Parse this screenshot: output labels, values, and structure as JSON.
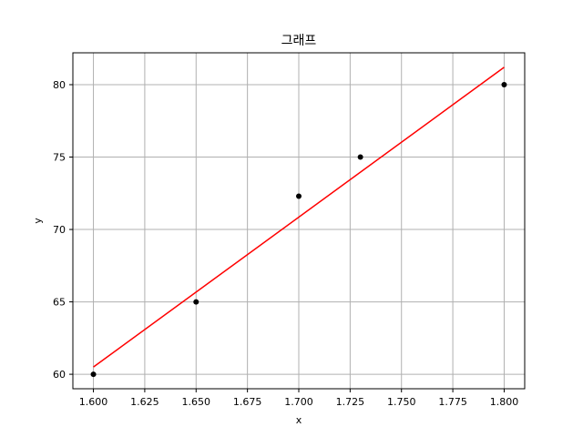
{
  "chart_data": {
    "type": "scatter",
    "title": "그래프",
    "xlabel": "x",
    "ylabel": "y",
    "xlim": [
      1.59,
      1.81
    ],
    "ylim": [
      59.0,
      82.2
    ],
    "grid": true,
    "legend": "none",
    "x_ticks": [
      1.6,
      1.625,
      1.65,
      1.675,
      1.7,
      1.725,
      1.75,
      1.775,
      1.8
    ],
    "x_tick_labels": [
      "1.600",
      "1.625",
      "1.650",
      "1.675",
      "1.700",
      "1.725",
      "1.750",
      "1.775",
      "1.800"
    ],
    "y_ticks": [
      60,
      65,
      70,
      75,
      80
    ],
    "y_tick_labels": [
      "60",
      "65",
      "70",
      "75",
      "80"
    ],
    "series": [
      {
        "kind": "scatter",
        "color": "#000000",
        "points": [
          {
            "x": 1.6,
            "y": 60.0
          },
          {
            "x": 1.65,
            "y": 65.0
          },
          {
            "x": 1.7,
            "y": 72.3
          },
          {
            "x": 1.73,
            "y": 75.0
          },
          {
            "x": 1.8,
            "y": 80.0
          }
        ]
      },
      {
        "kind": "line",
        "color": "#ff0000",
        "points": [
          {
            "x": 1.6,
            "y": 60.5
          },
          {
            "x": 1.8,
            "y": 81.2
          }
        ]
      }
    ],
    "grid_color": "#b0b0b0"
  }
}
